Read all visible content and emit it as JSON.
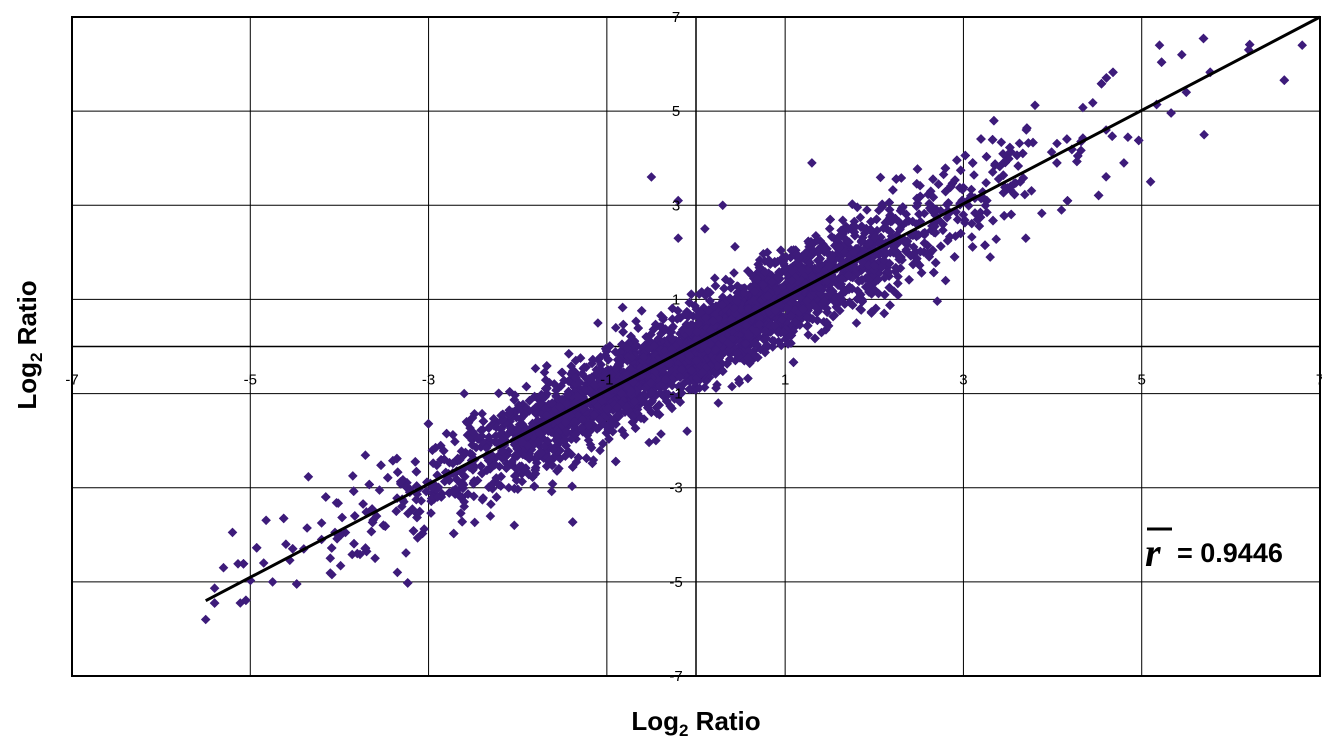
{
  "chart_data": {
    "type": "scatter",
    "title": "",
    "xlabel": {
      "prefix": "Log",
      "sub": "2",
      "suffix": " Ratio"
    },
    "ylabel": {
      "prefix": "Log",
      "sub": "2",
      "suffix": " Ratio"
    },
    "xlim": [
      -7,
      7
    ],
    "ylim": [
      -7,
      7
    ],
    "x_ticks": [
      -7,
      -5,
      -3,
      -1,
      1,
      3,
      5,
      7
    ],
    "y_ticks": [
      -7,
      -5,
      -3,
      -1,
      1,
      3,
      5,
      7
    ],
    "x_tick_labels": [
      "-7",
      "-5",
      "-3",
      "-1",
      "1",
      "3",
      "5",
      "7"
    ],
    "y_tick_labels": [
      "-7",
      "-5",
      "-3",
      "-1",
      "1",
      "3",
      "5",
      "7"
    ],
    "grid": true,
    "marker_color": "#3d1b7a",
    "trend_color": "#000000",
    "series": [
      {
        "n_points_approx": 6000,
        "correlation": 0.9446,
        "outliers": [
          [
            -5.5,
            -5.8
          ],
          [
            -5.3,
            -4.7
          ],
          [
            -4.75,
            -5.0
          ],
          [
            -4.85,
            -4.6
          ],
          [
            -4.6,
            -4.2
          ],
          [
            -4.4,
            -4.3
          ],
          [
            -4.2,
            -4.1
          ],
          [
            -4.05,
            -3.95
          ],
          [
            -3.8,
            -4.4
          ],
          [
            -3.6,
            -4.5
          ],
          [
            -3.35,
            -4.8
          ],
          [
            -3.55,
            -3.05
          ],
          [
            -3.3,
            -3.4
          ],
          [
            -4.2,
            -3.75
          ],
          [
            -2.6,
            -3.4
          ],
          [
            -2.1,
            -3.0
          ],
          [
            -1.8,
            -2.7
          ],
          [
            -1.6,
            -2.2
          ],
          [
            -2.6,
            -1.0
          ],
          [
            -2.9,
            -3.2
          ],
          [
            -1.7,
            -0.55
          ],
          [
            -1.1,
            0.5
          ],
          [
            -0.9,
            0.4
          ],
          [
            -0.45,
            -2.0
          ],
          [
            -0.5,
            -1.4
          ],
          [
            -0.1,
            -1.8
          ],
          [
            0.25,
            -1.2
          ],
          [
            0.5,
            0.6
          ],
          [
            0.8,
            2.0
          ],
          [
            1.2,
            0.8
          ],
          [
            1.5,
            2.5
          ],
          [
            1.8,
            0.5
          ],
          [
            2.3,
            1.9
          ],
          [
            2.8,
            1.4
          ],
          [
            3.3,
            1.9
          ],
          [
            3.7,
            2.3
          ],
          [
            4.1,
            2.9
          ],
          [
            4.6,
            4.6
          ],
          [
            4.8,
            3.9
          ],
          [
            5.1,
            3.5
          ],
          [
            5.2,
            6.4
          ],
          [
            5.45,
            6.2
          ],
          [
            5.5,
            5.4
          ],
          [
            5.7,
            4.5
          ],
          [
            6.2,
            6.3
          ],
          [
            6.8,
            6.4
          ],
          [
            -0.2,
            3.1
          ],
          [
            0.3,
            3.0
          ],
          [
            -0.5,
            3.6
          ],
          [
            1.3,
            3.9
          ],
          [
            3.0,
            2.8
          ],
          [
            -0.2,
            2.3
          ],
          [
            -3.85,
            -2.75
          ],
          [
            -5.2,
            -3.95
          ],
          [
            0.1,
            2.5
          ]
        ]
      }
    ],
    "trend_line": {
      "x": [
        -5.5,
        7.0
      ],
      "y": [
        -5.4,
        7.0
      ]
    },
    "annotation": {
      "label": "= 0.9446",
      "position": "lower-right"
    }
  }
}
